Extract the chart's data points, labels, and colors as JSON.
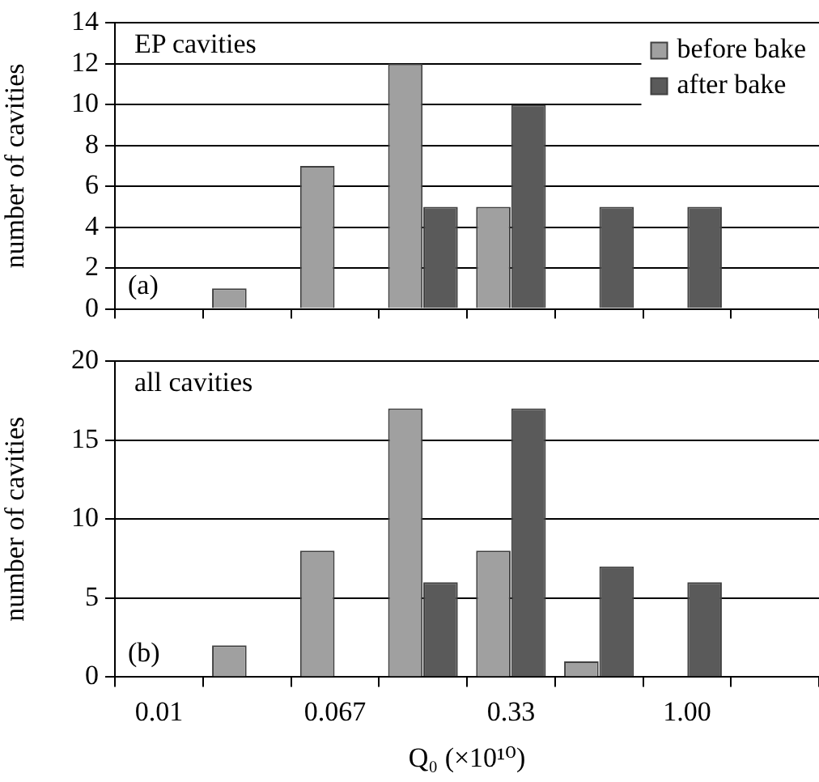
{
  "chart_data": [
    {
      "type": "bar",
      "ylabel": "number of cavities",
      "annotations": [
        "EP cavities",
        "(a)"
      ],
      "categories": [
        null,
        null,
        null,
        null,
        null,
        null,
        null,
        null
      ],
      "series": [
        {
          "name": "before bake",
          "color": "#a0a0a0",
          "values": [
            0,
            1,
            7,
            12,
            5,
            0,
            0,
            0
          ]
        },
        {
          "name": "after bake",
          "color": "#5a5a5a",
          "values": [
            0,
            0,
            0,
            5,
            10,
            5,
            5,
            0
          ]
        }
      ],
      "ylim": [
        0,
        14
      ],
      "yticks": [
        0,
        2,
        4,
        6,
        8,
        10,
        12,
        14
      ],
      "grid": "y",
      "legend": "top right"
    },
    {
      "type": "bar",
      "ylabel": "number of cavities",
      "xlabel": "Q₀ (×10¹⁰)",
      "annotations": [
        "all cavities",
        "(b)"
      ],
      "categories": [
        "0.01",
        null,
        "0.067",
        null,
        "0.33",
        null,
        "1.00",
        null
      ],
      "series": [
        {
          "color": "#a0a0a0",
          "values": [
            0,
            2,
            8,
            17,
            8,
            1,
            0,
            0
          ]
        },
        {
          "color": "#5a5a5a",
          "values": [
            0,
            0,
            0,
            6,
            17,
            7,
            6,
            0
          ]
        }
      ],
      "ylim": [
        0,
        20
      ],
      "yticks": [
        0,
        5,
        10,
        15,
        20
      ],
      "grid": "y"
    }
  ]
}
